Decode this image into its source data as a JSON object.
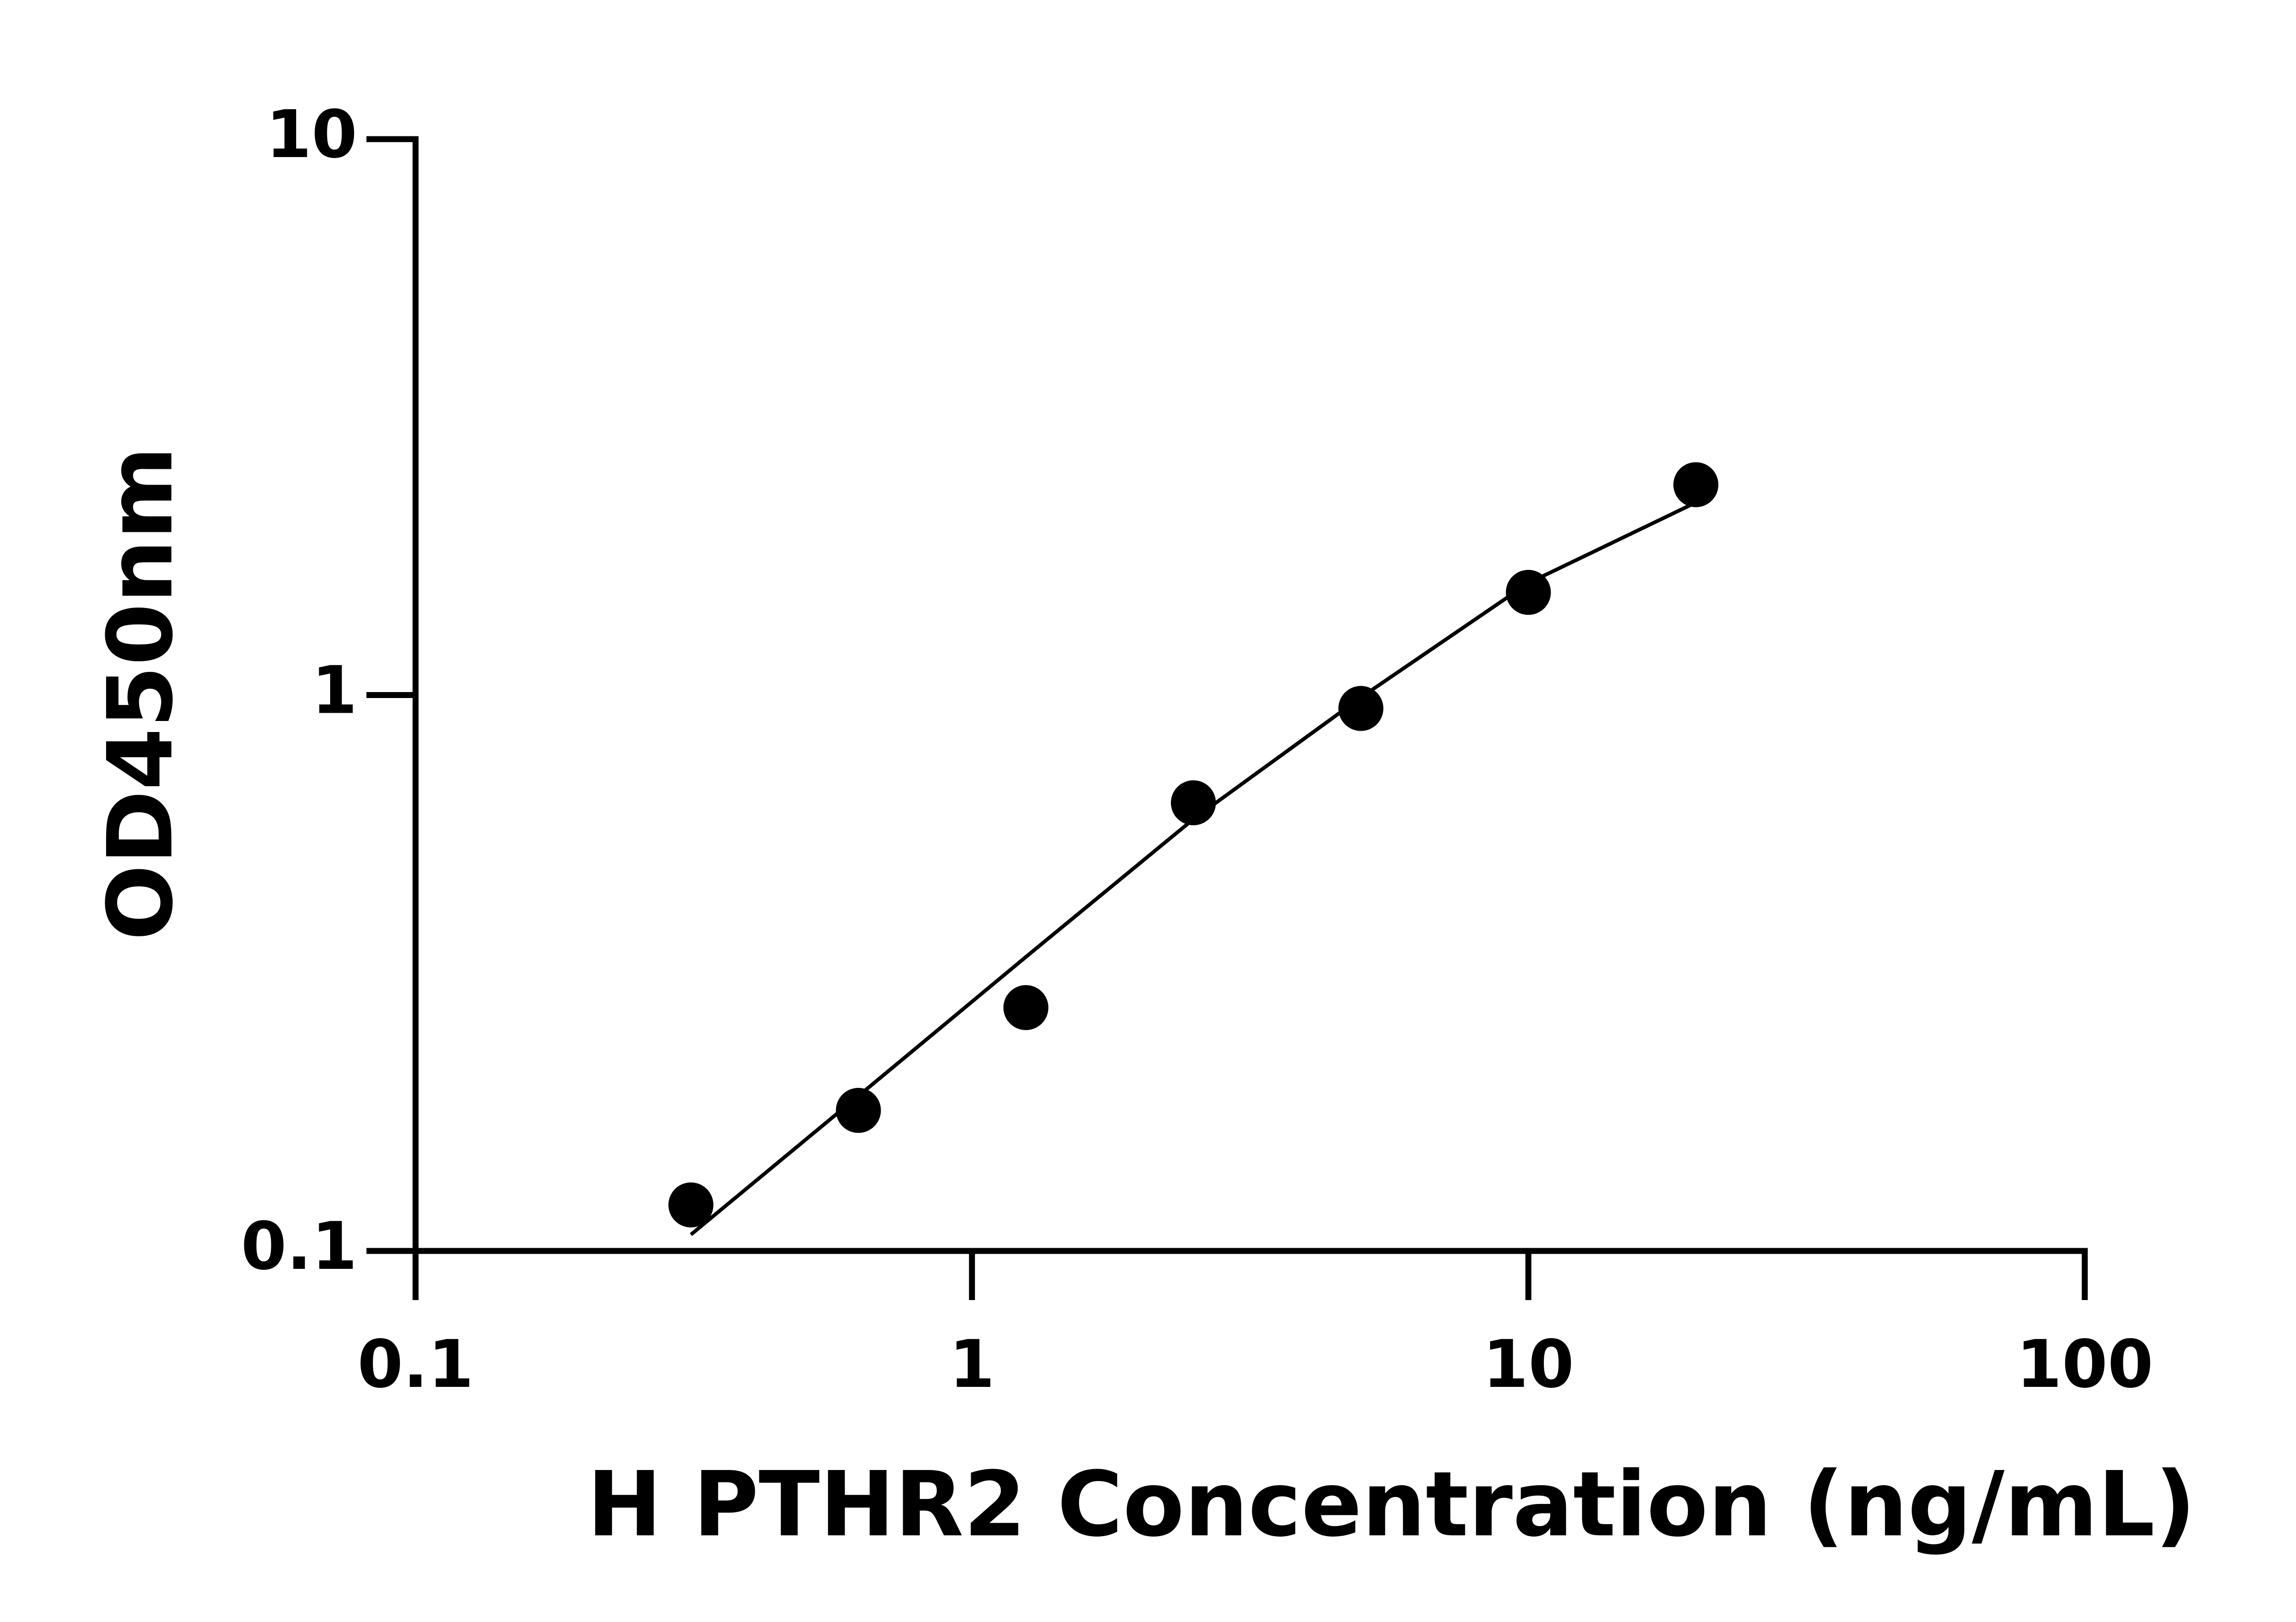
{
  "chart_data": {
    "type": "scatter",
    "x_label": "H PTHR2 Concentration (ng/mL)",
    "y_label": "OD450nm",
    "x": [
      0.3125,
      0.625,
      1.25,
      2.5,
      5,
      10,
      20
    ],
    "values": [
      0.121,
      0.179,
      0.274,
      0.64,
      0.946,
      1.53,
      2.39
    ],
    "color": "#000000",
    "fit": {
      "x": [
        0.3125,
        0.625,
        1.25,
        2.5,
        5,
        10,
        20
      ],
      "values": [
        0.107,
        0.19,
        0.338,
        0.598,
        0.99,
        1.59,
        2.22
      ]
    },
    "xlim": [
      0.1,
      100
    ],
    "xticks": [
      0.1,
      1,
      10,
      100
    ],
    "ylim": [
      0.1,
      10
    ],
    "yticks": [
      0.1,
      1,
      10
    ],
    "xscale": "log",
    "yscale": "log",
    "grid": false
  }
}
